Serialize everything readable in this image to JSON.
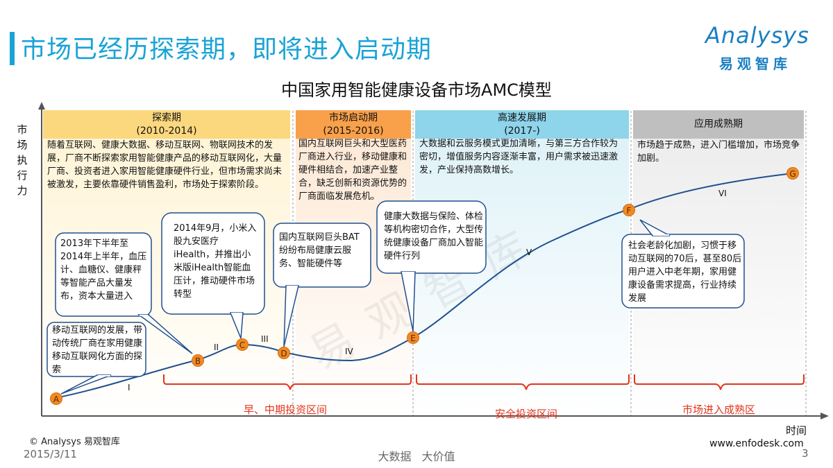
{
  "page_title": "市场已经历探索期，即将进入启动期",
  "logo": {
    "word": "Analysys",
    "cn": "易观智库"
  },
  "chart_title": "中国家用智能健康设备市场AMC模型",
  "y_axis_label": "市场执行力",
  "x_axis_label": "时间",
  "phases": [
    {
      "name": "探索期",
      "period": "(2010-2014)",
      "color": "#fbd77e",
      "text": "随着互联网、健康大数据、移动互联网、物联网技术的发展，厂商不断探索家用智能健康产品的移动互联网化，大量厂商、投资者进入家用智能健康硬件行业，但市场需求尚未被激发，主要依靠硬件销售盈利，市场处于探索阶段。"
    },
    {
      "name": "市场启动期",
      "period": "(2015-2016)",
      "color": "#f8a04a",
      "text": "国内互联网巨头和大型医药厂商进入行业，移动健康和硬件相结合，加速产业整合，缺乏创新和资源优势的厂商面临发展危机。"
    },
    {
      "name": "高速发展期",
      "period": "(2017-)",
      "color": "#8ed4ea",
      "text": "大数据和云服务模式更加清晰，与第三方合作较为密切，增值服务内容逐渐丰富，用户需求被迅速激发，产业保持高数增长。"
    },
    {
      "name": "应用成熟期",
      "period": "",
      "color": "#bfbfbf",
      "text": "市场趋于成熟，进入门槛增加，市场竞争加剧。"
    }
  ],
  "callouts": [
    {
      "id": "c1",
      "text": "2013年下半年至2014年上半年，血压计、血糖仪、健康秤等智能产品大量发布，资本大量进入"
    },
    {
      "id": "c2",
      "text": "移动互联网的发展，带动传统厂商在家用健康移动互联网化方面的探索"
    },
    {
      "id": "c3",
      "text": "2014年9月，小米入股九安医疗iHealth，并推出小米版iHealth智能血压计，推动硬件市场转型"
    },
    {
      "id": "c4",
      "text": "国内互联网巨头BAT纷纷布局健康云服务、智能硬件等"
    },
    {
      "id": "c5",
      "text": "健康大数据与保险、体检等机构密切合作，大型传统健康设备厂商加入智能硬件行列"
    },
    {
      "id": "c6",
      "text": "社会老龄化加剧，习惯于移动互联网的70后，甚至80后用户进入中老年期，家用健康设备需求提高，行业持续发展"
    }
  ],
  "points": [
    "A",
    "B",
    "C",
    "D",
    "E",
    "F",
    "G"
  ],
  "segments": [
    "I",
    "II",
    "III",
    "IV",
    "V",
    "VI"
  ],
  "ranges": [
    "早、中期投资区间",
    "安全投资区间",
    "市场进入成熟区"
  ],
  "footer": {
    "copyright": "© Analysys 易观智库",
    "date": "2015/3/11",
    "center": "大数据 大价值",
    "site": "www.enfodesk.com",
    "page": "3"
  },
  "watermark": "易观智库",
  "colors": {
    "accent": "#1aa3d6",
    "curve": "#1f4f8f",
    "range": "#e2341d",
    "point": "#f08a24"
  }
}
